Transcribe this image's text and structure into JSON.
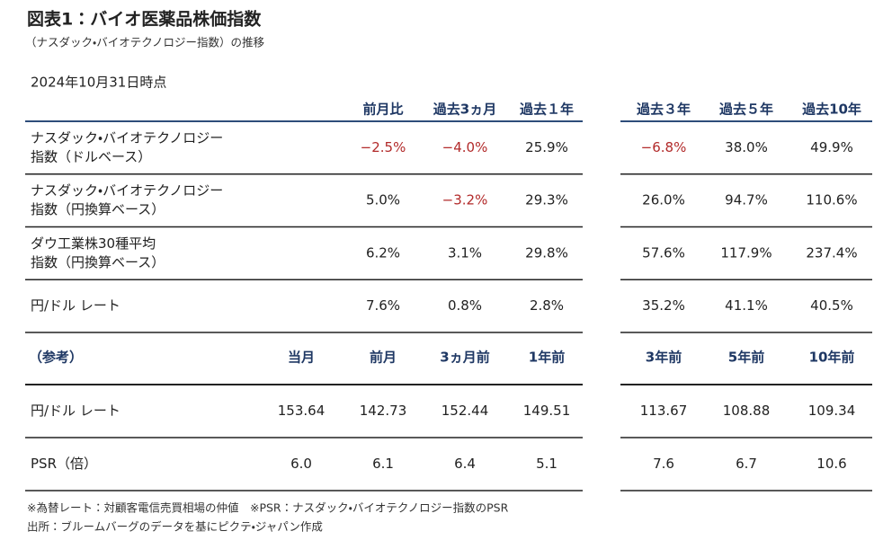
{
  "header": {
    "title": "図表1：バイオ医薬品株価指数",
    "subtitle": "（ナスダック・バイオテクノロジー指数）の推移",
    "as_of": "2024年10月31日時点"
  },
  "table1": {
    "columns": [
      "前月比",
      "過去3ヵ月",
      "過去１年",
      "過去３年",
      "過去５年",
      "過去10年"
    ],
    "rows": [
      {
        "label": [
          "ナスダック・バイオテクノロジー",
          "指数（ドルベース）"
        ],
        "cells": [
          "−2.5%",
          "−4.0%",
          "25.9%",
          "−6.8%",
          "38.0%",
          "49.9%"
        ]
      },
      {
        "label": [
          "ナスダック・バイオテクノロジー",
          "指数（円換算ベース）"
        ],
        "cells": [
          "5.0%",
          "−3.2%",
          "29.3%",
          "26.0%",
          "94.7%",
          "110.6%"
        ]
      },
      {
        "label": [
          "ダウ工業株30種平均",
          "指数（円換算ベース）"
        ],
        "cells": [
          "6.2%",
          "3.1%",
          "29.8%",
          "57.6%",
          "117.9%",
          "237.4%"
        ]
      },
      {
        "label": [
          "円/ドル レート"
        ],
        "cells": [
          "7.6%",
          "0.8%",
          "2.8%",
          "35.2%",
          "41.1%",
          "40.5%"
        ]
      }
    ]
  },
  "table2": {
    "label_header": "（参考）",
    "columns": [
      "当月",
      "前月",
      "3ヵ月前",
      "1年前",
      "3年前",
      "5年前",
      "10年前"
    ],
    "rows": [
      {
        "label": [
          "円/ドル レート"
        ],
        "cells": [
          "153.64",
          "142.73",
          "152.44",
          "149.51",
          "113.67",
          "108.88",
          "109.34"
        ]
      },
      {
        "label": [
          "PSR（倍）"
        ],
        "cells": [
          "6.0",
          "6.1",
          "6.4",
          "5.1",
          "7.6",
          "6.7",
          "10.6"
        ]
      }
    ]
  },
  "notes": [
    "※為替レート：対顧客電信売買相場の仲値　※PSR：ナスダック・バイオテクノロジー指数のPSR",
    "出所：ブルームバーグのデータを基にピクテ・ジャパン作成"
  ]
}
